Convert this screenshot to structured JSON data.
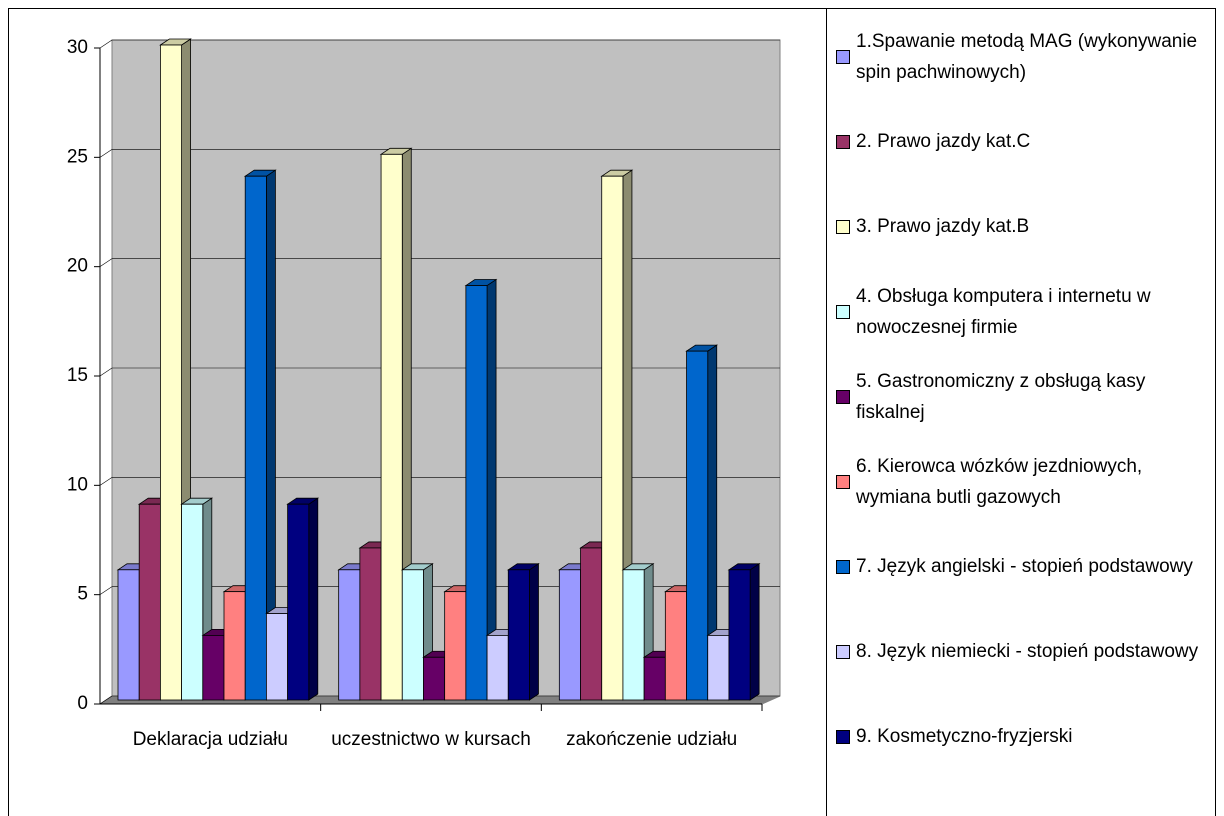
{
  "chart_data": {
    "type": "bar3d",
    "categories": [
      "Deklaracja udziału",
      "uczestnictwo w kursach",
      "zakończenie udziału"
    ],
    "series": [
      {
        "name": "1.Spawanie metodą MAG (wykonywanie spin pachwinowych)",
        "color": "#9999ff",
        "values": [
          6,
          6,
          6
        ]
      },
      {
        "name": "2. Prawo jazdy kat.C",
        "color": "#993366",
        "values": [
          9,
          7,
          7
        ]
      },
      {
        "name": "3. Prawo jazdy kat.B",
        "color": "#ffffcc",
        "values": [
          30,
          25,
          24
        ]
      },
      {
        "name": "4. Obsługa komputera i internetu w nowoczesnej firmie",
        "color": "#ccffff",
        "values": [
          9,
          6,
          6
        ]
      },
      {
        "name": "5. Gastronomiczny z obsługą kasy fiskalnej",
        "color": "#660066",
        "values": [
          3,
          2,
          2
        ]
      },
      {
        "name": "6. Kierowca wózków jezdniowych, wymiana butli gazowych",
        "color": "#ff8080",
        "values": [
          5,
          5,
          5
        ]
      },
      {
        "name": "7. Język angielski - stopień podstawowy",
        "color": "#0066cc",
        "values": [
          24,
          19,
          16
        ]
      },
      {
        "name": "8. Język niemiecki - stopień podstawowy",
        "color": "#ccccff",
        "values": [
          4,
          3,
          3
        ]
      },
      {
        "name": "9. Kosmetyczno-fryzjerski",
        "color": "#000080",
        "values": [
          9,
          6,
          6
        ]
      }
    ],
    "ylim": [
      0,
      30
    ],
    "yticks": [
      0,
      5,
      10,
      15,
      20,
      25,
      30
    ],
    "grid": true,
    "legend": "right"
  }
}
